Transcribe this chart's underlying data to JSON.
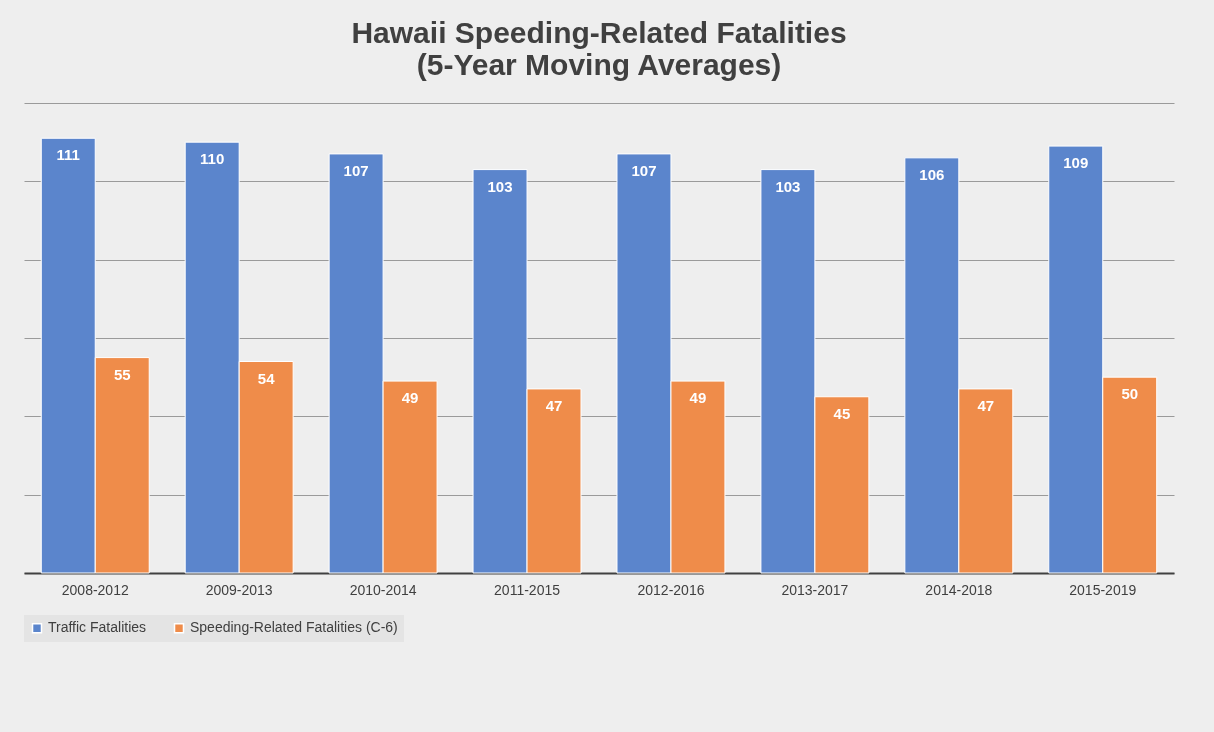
{
  "chart_data": {
    "type": "bar",
    "title": "Hawaii Speeding-Related Fatalities\n(5-Year Moving Averages)",
    "categories": [
      "2008-2012",
      "2009-2013",
      "2010-2014",
      "2011-2015",
      "2012-2016",
      "2013-2017",
      "2014-2018",
      "2015-2019"
    ],
    "series": [
      {
        "name": "Traffic Fatalities",
        "color": "#5b85cc",
        "values": [
          111,
          110,
          107,
          103,
          107,
          103,
          106,
          109
        ]
      },
      {
        "name": "Speeding-Related Fatalities (C-6)",
        "color": "#ef8c4a",
        "values": [
          55,
          54,
          49,
          47,
          49,
          45,
          47,
          50
        ]
      }
    ],
    "ylim": [
      0,
      120
    ],
    "yticks": [
      {
        "value": 0,
        "label": null
      },
      {
        "value": 20,
        "label": null
      },
      {
        "value": 40,
        "label": null
      },
      {
        "value": 60,
        "label": null
      },
      {
        "value": 80,
        "label": null
      },
      {
        "value": 100,
        "label": null
      },
      {
        "value": 120,
        "label": null
      }
    ],
    "grid": "y",
    "legend": "bottom",
    "data_labels": true,
    "tick_labels": "x"
  }
}
